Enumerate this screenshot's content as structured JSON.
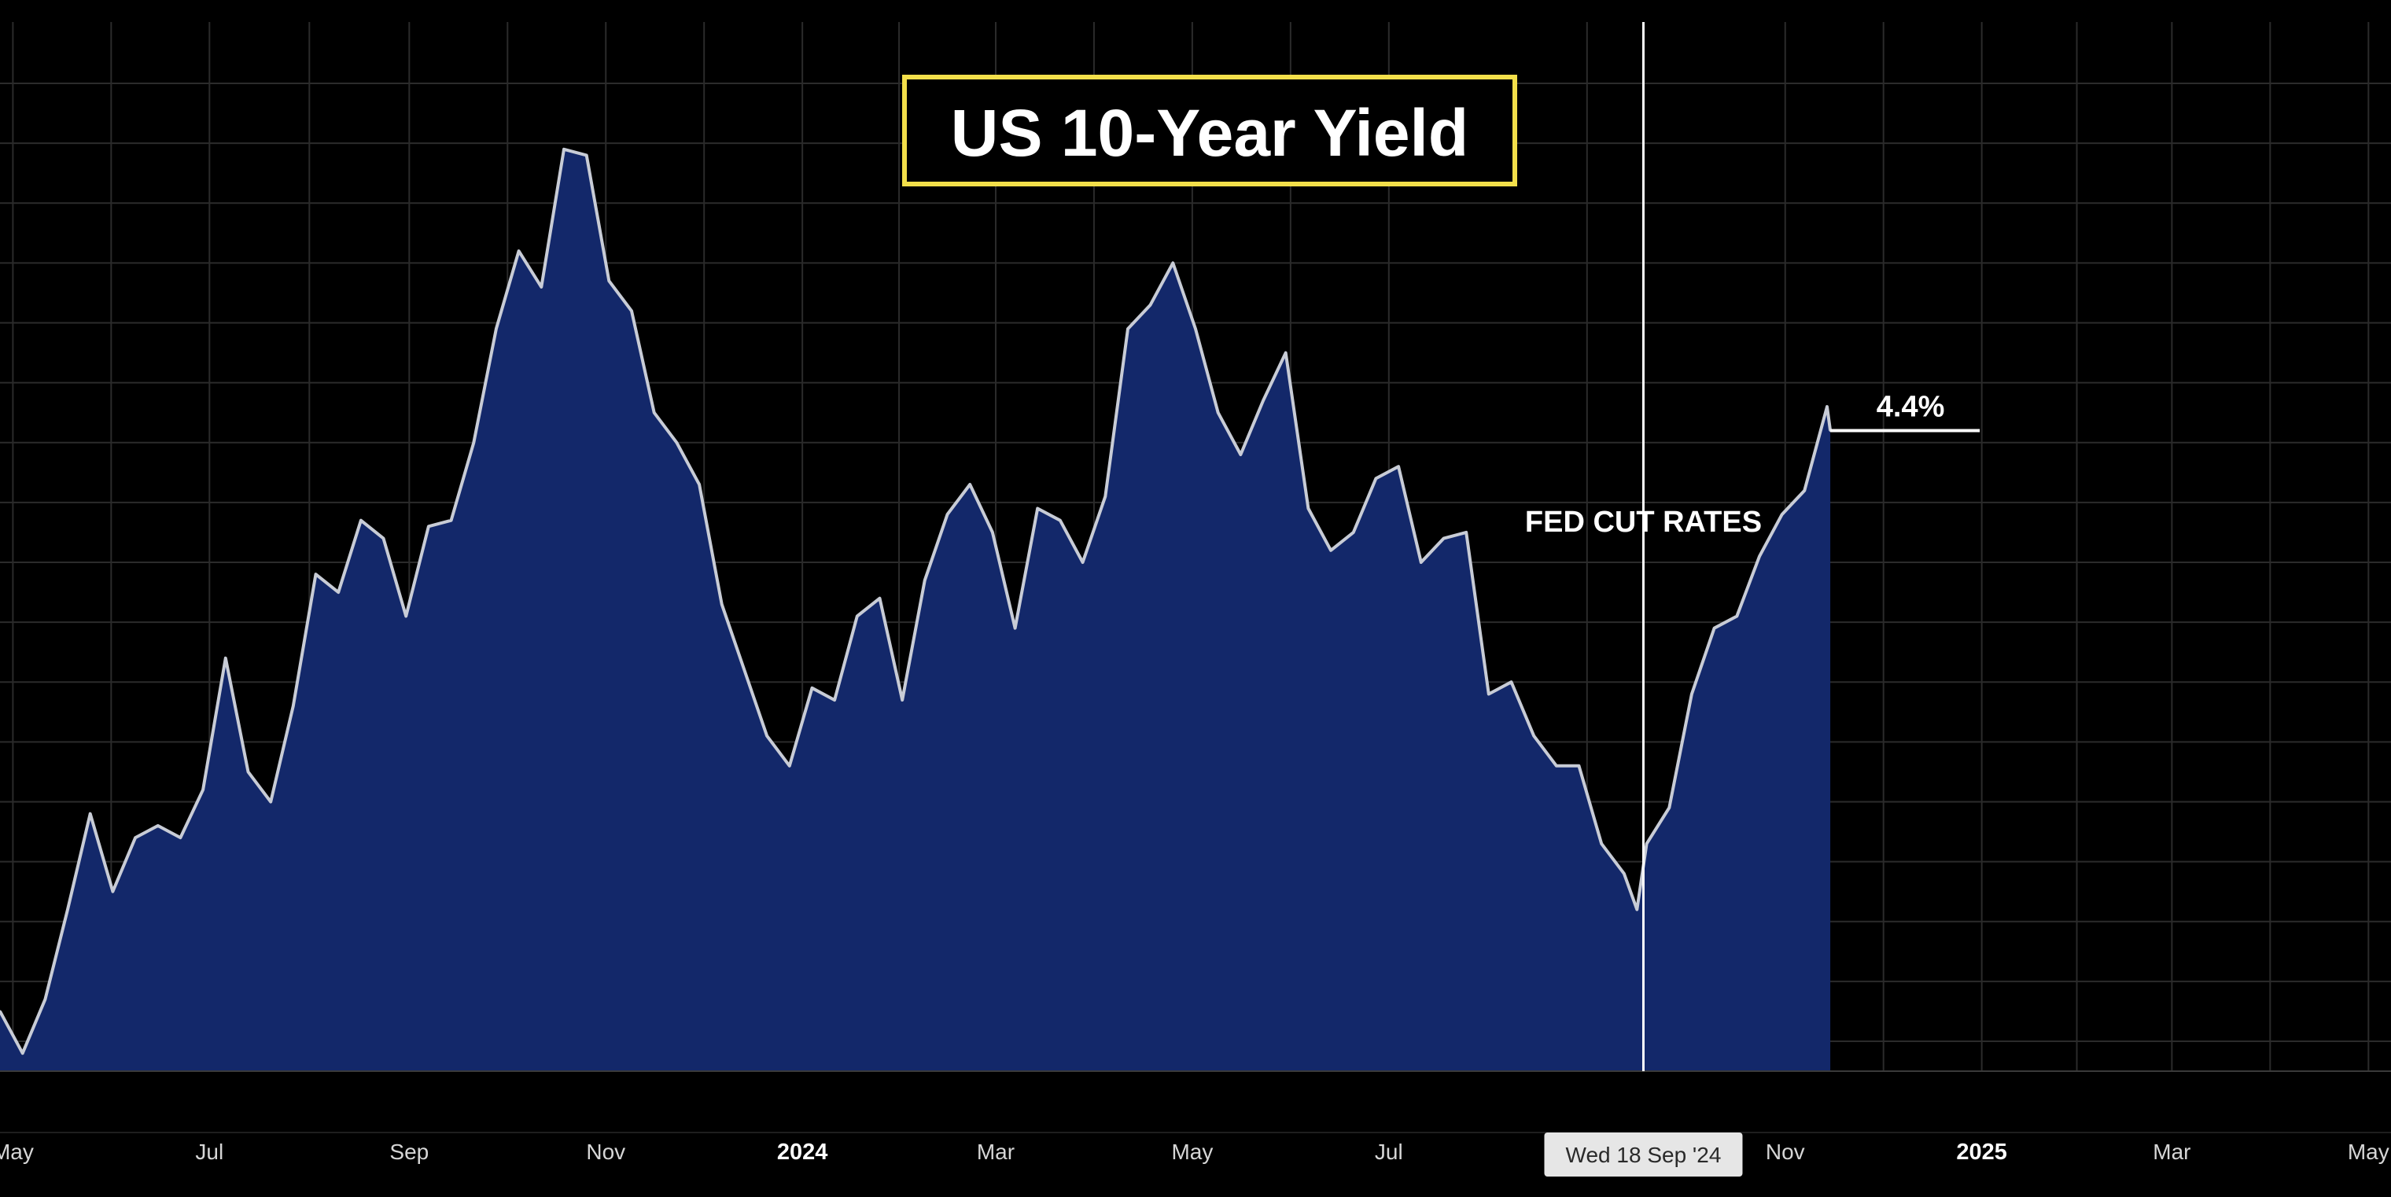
{
  "chart_data": {
    "type": "area",
    "title": "US 10-Year Yield",
    "x_tick_labels": [
      "May",
      "Jul",
      "Sep",
      "Nov",
      "2024",
      "Mar",
      "May",
      "Jul",
      "Nov",
      "2025",
      "Mar",
      "May"
    ],
    "x_tick_bold": [
      false,
      false,
      false,
      false,
      true,
      false,
      false,
      false,
      false,
      true,
      false,
      false
    ],
    "x_range": [
      "2023-04-27",
      "2025-05-08"
    ],
    "y_range": [
      3.35,
      5.05
    ],
    "ylabel": "",
    "xlabel": "",
    "grid": true,
    "series": [
      {
        "x": [
          "2023-04-27",
          "2023-05-04",
          "2023-05-11",
          "2023-05-18",
          "2023-05-25",
          "2023-06-01",
          "2023-06-08",
          "2023-06-15",
          "2023-06-22",
          "2023-06-29",
          "2023-07-06",
          "2023-07-13",
          "2023-07-20",
          "2023-07-27",
          "2023-08-03",
          "2023-08-10",
          "2023-08-17",
          "2023-08-24",
          "2023-08-31",
          "2023-09-07",
          "2023-09-14",
          "2023-09-21",
          "2023-09-28",
          "2023-10-05",
          "2023-10-12",
          "2023-10-19",
          "2023-10-26",
          "2023-11-02",
          "2023-11-09",
          "2023-11-16",
          "2023-11-23",
          "2023-11-30",
          "2023-12-07",
          "2023-12-14",
          "2023-12-21",
          "2023-12-28",
          "2024-01-04",
          "2024-01-11",
          "2024-01-18",
          "2024-01-25",
          "2024-02-01",
          "2024-02-08",
          "2024-02-15",
          "2024-02-22",
          "2024-02-29",
          "2024-03-07",
          "2024-03-14",
          "2024-03-21",
          "2024-03-28",
          "2024-04-04",
          "2024-04-11",
          "2024-04-18",
          "2024-04-25",
          "2024-05-02",
          "2024-05-09",
          "2024-05-16",
          "2024-05-23",
          "2024-05-30",
          "2024-06-06",
          "2024-06-13",
          "2024-06-20",
          "2024-06-27",
          "2024-07-04",
          "2024-07-11",
          "2024-07-18",
          "2024-07-25",
          "2024-08-01",
          "2024-08-08",
          "2024-08-15",
          "2024-08-22",
          "2024-08-29",
          "2024-09-05",
          "2024-09-12",
          "2024-09-16",
          "2024-09-19",
          "2024-09-26",
          "2024-10-03",
          "2024-10-10",
          "2024-10-17",
          "2024-10-24",
          "2024-10-31",
          "2024-11-07",
          "2024-11-14",
          "2024-11-15"
        ],
        "values": [
          3.45,
          3.38,
          3.47,
          3.62,
          3.78,
          3.65,
          3.74,
          3.76,
          3.74,
          3.82,
          4.04,
          3.85,
          3.8,
          3.96,
          4.18,
          4.15,
          4.27,
          4.24,
          4.11,
          4.26,
          4.27,
          4.4,
          4.59,
          4.72,
          4.66,
          4.89,
          4.88,
          4.67,
          4.62,
          4.45,
          4.4,
          4.33,
          4.13,
          4.02,
          3.91,
          3.86,
          3.99,
          3.97,
          4.11,
          4.14,
          3.97,
          4.17,
          4.28,
          4.33,
          4.25,
          4.09,
          4.29,
          4.27,
          4.2,
          4.31,
          4.59,
          4.63,
          4.7,
          4.59,
          4.45,
          4.38,
          4.47,
          4.55,
          4.29,
          4.22,
          4.25,
          4.34,
          4.36,
          4.2,
          4.24,
          4.25,
          3.98,
          4.0,
          3.91,
          3.86,
          3.86,
          3.73,
          3.68,
          3.62,
          3.73,
          3.79,
          3.98,
          4.09,
          4.11,
          4.21,
          4.28,
          4.32,
          4.46,
          4.42
        ]
      }
    ],
    "annotation": {
      "label": "FED CUT RATES",
      "date": "2024-09-18",
      "crosshair_label": "Wed 18 Sep '24"
    },
    "last_value_label": "4.4%",
    "colors": {
      "background": "#000000",
      "grid": "#2b2b2b",
      "area_fill": "#13286a",
      "line": "#c8ccd6",
      "title_border": "#f3df4a",
      "crosshair": "#ffffff",
      "crosshair_label_bg": "#e6e6e6"
    }
  }
}
